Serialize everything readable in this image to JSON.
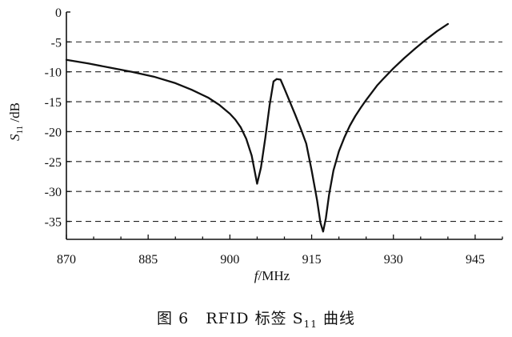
{
  "chart_data": {
    "type": "line",
    "xlabel": "f/MHz",
    "ylabel": "S11 /dB",
    "ylabel_main": "S",
    "ylabel_sub": "11",
    "ylabel_unit": " /dB",
    "xlim": [
      870,
      950
    ],
    "ylim": [
      -38,
      0
    ],
    "x_ticks": [
      870,
      885,
      900,
      915,
      930,
      945
    ],
    "y_ticks": [
      0,
      -5,
      -10,
      -15,
      -20,
      -25,
      -30,
      -35
    ],
    "y_tick_labels": [
      "0",
      "-5",
      "-10",
      "-15",
      "-20",
      "-25",
      "-30",
      "-35"
    ],
    "grid": "horizontal-dashed",
    "series": [
      {
        "x": [
          870,
          874,
          878,
          882,
          886,
          890,
          893,
          896,
          898,
          900,
          901,
          902,
          903,
          904,
          905,
          905.7,
          906.5,
          907.3,
          908.0,
          908.6,
          909.3,
          910,
          911,
          912,
          913,
          914,
          915,
          916,
          916.6,
          917.1,
          917.6,
          918.2,
          919,
          920,
          921,
          922,
          923,
          924,
          925,
          926,
          927,
          928,
          930,
          932,
          934,
          936,
          938,
          940
        ],
        "y": [
          -8.0,
          -8.6,
          -9.3,
          -10.0,
          -10.8,
          -11.9,
          -13.0,
          -14.3,
          -15.5,
          -17.0,
          -18.0,
          -19.3,
          -21.2,
          -24.0,
          -28.7,
          -26.0,
          -21.0,
          -15.5,
          -11.6,
          -11.2,
          -11.3,
          -12.8,
          -15.0,
          -17.2,
          -19.5,
          -22.0,
          -26.5,
          -31.5,
          -35.2,
          -36.7,
          -34.5,
          -30.5,
          -26.5,
          -23.3,
          -21.0,
          -19.0,
          -17.4,
          -16.0,
          -14.7,
          -13.5,
          -12.3,
          -11.3,
          -9.4,
          -7.7,
          -6.1,
          -4.6,
          -3.2,
          -2.0
        ]
      }
    ]
  },
  "caption": {
    "figure_no": "图 6",
    "text_before": "RFID 标签 S",
    "sub": "11",
    "text_after": " 曲线"
  }
}
